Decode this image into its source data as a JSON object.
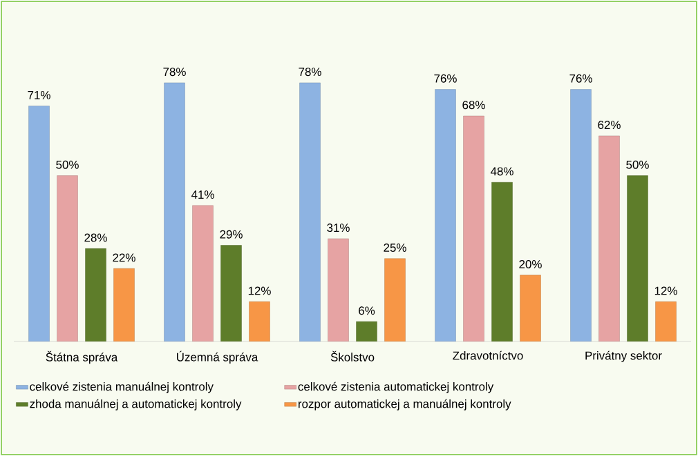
{
  "chart_data": {
    "type": "bar",
    "categories": [
      "Štátna správa",
      "Územná správa",
      "Školstvo",
      "Zdravotníctvo",
      "Privátny sektor"
    ],
    "legend": "bottom",
    "series": [
      {
        "name": "celkové zistenia manuálnej kontroly",
        "color": "#8db3e2",
        "values": [
          71,
          78,
          78,
          76,
          76
        ],
        "value_labels": [
          "71%",
          "78%",
          "78%",
          "76%",
          "76%"
        ]
      },
      {
        "name": "celkové zistenia automatickej kontroly",
        "color": "#e6a3a3",
        "values": [
          50,
          41,
          31,
          68,
          62
        ],
        "value_labels": [
          "50%",
          "41%",
          "31%",
          "68%",
          "62%"
        ]
      },
      {
        "name": "zhoda manuálnej a automatickej kontroly",
        "color": "#5e7d2a",
        "values": [
          28,
          29,
          6,
          48,
          50
        ],
        "value_labels": [
          "28%",
          "29%",
          "6%",
          "48%",
          "50%"
        ]
      },
      {
        "name": "rozpor automatickej a manuálnej kontroly",
        "color": "#f79646",
        "values": [
          22,
          12,
          25,
          20,
          12
        ],
        "value_labels": [
          "22%",
          "12%",
          "25%",
          "20%",
          "12%"
        ]
      }
    ]
  }
}
